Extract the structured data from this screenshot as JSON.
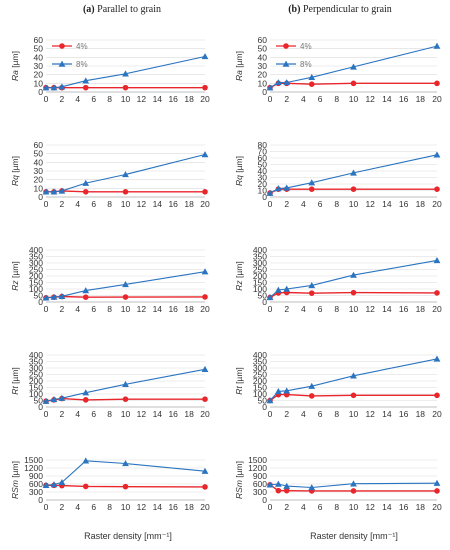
{
  "column_titles": [
    {
      "letter": "(a)",
      "rest": " Parallel to grain"
    },
    {
      "letter": "(b)",
      "rest": " Perpendicular to grain"
    }
  ],
  "x_axis_label": "Raster density [mm⁻¹]",
  "colors": {
    "s4": "#e8262b",
    "s8": "#2a74c0",
    "grid": "#d9d9d9",
    "axis": "#bfbfbf"
  },
  "chart_data": [
    {
      "type": "line",
      "panel": "a1",
      "ylabel": {
        "sym": "Ra",
        "unit": " [µm]"
      },
      "ylim": [
        0,
        60
      ],
      "yticks": [
        0,
        10,
        20,
        30,
        40,
        50,
        60
      ],
      "x": [
        0,
        1,
        2,
        5,
        10,
        20
      ],
      "xticks": [
        0,
        2,
        4,
        6,
        8,
        10,
        12,
        14,
        16,
        18,
        20
      ],
      "legend": true,
      "series": [
        {
          "name": "4%",
          "key": "s4",
          "values": [
            5,
            5,
            5,
            5,
            5,
            5
          ]
        },
        {
          "name": "8%",
          "key": "s8",
          "values": [
            5,
            5,
            6,
            13,
            21,
            41
          ]
        }
      ]
    },
    {
      "type": "line",
      "panel": "b1",
      "ylabel": {
        "sym": "Ra",
        "unit": " [µm]"
      },
      "ylim": [
        0,
        60
      ],
      "yticks": [
        0,
        10,
        20,
        30,
        40,
        50,
        60
      ],
      "x": [
        0,
        1,
        2,
        5,
        10,
        20
      ],
      "xticks": [
        0,
        2,
        4,
        6,
        8,
        10,
        12,
        14,
        16,
        18,
        20
      ],
      "legend": true,
      "series": [
        {
          "name": "4%",
          "key": "s4",
          "values": [
            5,
            10,
            10,
            9,
            10,
            10
          ]
        },
        {
          "name": "8%",
          "key": "s8",
          "values": [
            5,
            11,
            11,
            17,
            29,
            53
          ]
        }
      ]
    },
    {
      "type": "line",
      "panel": "a2",
      "ylabel": {
        "sym": "Rq",
        "unit": " [µm]"
      },
      "ylim": [
        0,
        60
      ],
      "yticks": [
        0,
        10,
        20,
        30,
        40,
        50,
        60
      ],
      "x": [
        0,
        1,
        2,
        5,
        10,
        20
      ],
      "xticks": [
        0,
        2,
        4,
        6,
        8,
        10,
        12,
        14,
        16,
        18,
        20
      ],
      "series": [
        {
          "name": "4%",
          "key": "s4",
          "values": [
            6,
            6,
            7,
            6,
            6,
            6
          ]
        },
        {
          "name": "8%",
          "key": "s8",
          "values": [
            6,
            6,
            7,
            16,
            26,
            49
          ]
        }
      ]
    },
    {
      "type": "line",
      "panel": "b2",
      "ylabel": {
        "sym": "Rq",
        "unit": " [µm]"
      },
      "ylim": [
        0,
        80
      ],
      "yticks": [
        0,
        10,
        20,
        30,
        40,
        50,
        60,
        70,
        80
      ],
      "x": [
        0,
        1,
        2,
        5,
        10,
        20
      ],
      "xticks": [
        0,
        2,
        4,
        6,
        8,
        10,
        12,
        14,
        16,
        18,
        20
      ],
      "series": [
        {
          "name": "4%",
          "key": "s4",
          "values": [
            6,
            12,
            12,
            12,
            12,
            12
          ]
        },
        {
          "name": "8%",
          "key": "s8",
          "values": [
            6,
            13,
            14,
            22,
            37,
            65
          ]
        }
      ]
    },
    {
      "type": "line",
      "panel": "a3",
      "ylabel": {
        "sym": "Rz",
        "unit": " [µm]"
      },
      "ylim": [
        0,
        400
      ],
      "yticks": [
        0,
        50,
        100,
        150,
        200,
        250,
        300,
        350,
        400
      ],
      "x": [
        0,
        1,
        2,
        5,
        10,
        20
      ],
      "xticks": [
        0,
        2,
        4,
        6,
        8,
        10,
        12,
        14,
        16,
        18,
        20
      ],
      "series": [
        {
          "name": "4%",
          "key": "s4",
          "values": [
            32,
            37,
            42,
            37,
            38,
            39
          ]
        },
        {
          "name": "8%",
          "key": "s8",
          "values": [
            32,
            38,
            44,
            88,
            135,
            233
          ]
        }
      ]
    },
    {
      "type": "line",
      "panel": "b3",
      "ylabel": {
        "sym": "Rz",
        "unit": " [µm]"
      },
      "ylim": [
        0,
        400
      ],
      "yticks": [
        0,
        50,
        100,
        150,
        200,
        250,
        300,
        350,
        400
      ],
      "x": [
        0,
        1,
        2,
        5,
        10,
        20
      ],
      "xticks": [
        0,
        2,
        4,
        6,
        8,
        10,
        12,
        14,
        16,
        18,
        20
      ],
      "series": [
        {
          "name": "4%",
          "key": "s4",
          "values": [
            35,
            70,
            73,
            68,
            72,
            70
          ]
        },
        {
          "name": "8%",
          "key": "s8",
          "values": [
            35,
            92,
            100,
            128,
            207,
            320
          ]
        }
      ]
    },
    {
      "type": "line",
      "panel": "a4",
      "ylabel": {
        "sym": "Rt",
        "unit": " [µm]"
      },
      "ylim": [
        0,
        400
      ],
      "yticks": [
        0,
        50,
        100,
        150,
        200,
        250,
        300,
        350,
        400
      ],
      "x": [
        0,
        1,
        2,
        5,
        10,
        20
      ],
      "xticks": [
        0,
        2,
        4,
        6,
        8,
        10,
        12,
        14,
        16,
        18,
        20
      ],
      "series": [
        {
          "name": "4%",
          "key": "s4",
          "values": [
            45,
            55,
            65,
            55,
            60,
            60
          ]
        },
        {
          "name": "8%",
          "key": "s8",
          "values": [
            45,
            58,
            68,
            110,
            175,
            290
          ]
        }
      ]
    },
    {
      "type": "line",
      "panel": "b4",
      "ylabel": {
        "sym": "Rt",
        "unit": " [µm]"
      },
      "ylim": [
        0,
        400
      ],
      "yticks": [
        0,
        50,
        100,
        150,
        200,
        250,
        300,
        350,
        400
      ],
      "x": [
        0,
        1,
        2,
        5,
        10,
        20
      ],
      "xticks": [
        0,
        2,
        4,
        6,
        8,
        10,
        12,
        14,
        16,
        18,
        20
      ],
      "series": [
        {
          "name": "4%",
          "key": "s4",
          "values": [
            50,
            95,
            95,
            85,
            90,
            90
          ]
        },
        {
          "name": "8%",
          "key": "s8",
          "values": [
            50,
            120,
            125,
            160,
            240,
            370
          ]
        }
      ]
    },
    {
      "type": "line",
      "panel": "a5",
      "ylabel": {
        "sym": "RSm",
        "unit": " [µm]"
      },
      "ylim": [
        0,
        1500
      ],
      "yticks": [
        0,
        300,
        600,
        900,
        1200,
        1500
      ],
      "x": [
        0,
        1,
        2,
        5,
        10,
        20
      ],
      "xticks": [
        0,
        2,
        4,
        6,
        8,
        10,
        12,
        14,
        16,
        18,
        20
      ],
      "series": [
        {
          "name": "4%",
          "key": "s4",
          "values": [
            550,
            550,
            540,
            510,
            500,
            490
          ]
        },
        {
          "name": "8%",
          "key": "s8",
          "values": [
            550,
            580,
            660,
            1470,
            1370,
            1080
          ]
        }
      ]
    },
    {
      "type": "line",
      "panel": "b5",
      "ylabel": {
        "sym": "RSm",
        "unit": " [µm]"
      },
      "ylim": [
        0,
        1500
      ],
      "yticks": [
        0,
        300,
        600,
        900,
        1200,
        1500
      ],
      "x": [
        0,
        1,
        2,
        5,
        10,
        20
      ],
      "xticks": [
        0,
        2,
        4,
        6,
        8,
        10,
        12,
        14,
        16,
        18,
        20
      ],
      "series": [
        {
          "name": "4%",
          "key": "s4",
          "values": [
            570,
            350,
            350,
            340,
            340,
            340
          ]
        },
        {
          "name": "8%",
          "key": "s8",
          "values": [
            570,
            600,
            520,
            470,
            610,
            630
          ]
        }
      ]
    }
  ]
}
